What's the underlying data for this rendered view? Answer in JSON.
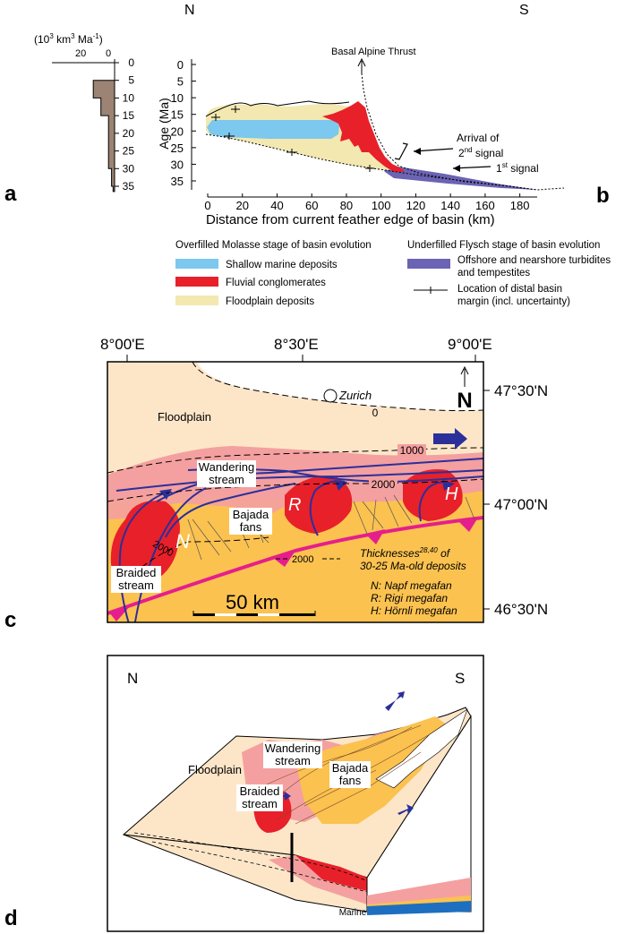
{
  "panel_letters": {
    "a": "a",
    "b": "b",
    "c": "c",
    "d": "d"
  },
  "panel_a": {
    "unit_base": "(10",
    "unit_exp1": "3",
    "unit_mid": " km",
    "unit_exp2": "3",
    "unit_ma": " Ma",
    "unit_exp3": "-1",
    "unit_close": ")",
    "x_ticks": [
      "20",
      "0"
    ],
    "fill_color": "#9c8373"
  },
  "panel_b": {
    "north": "N",
    "south": "S",
    "ylabel": "Age (Ma)",
    "xlabel": "Distance from current feather edge of basin (km)",
    "thrust_label": "Basal Alpine Thrust",
    "arrival_line1": "Arrival of",
    "arrival_line2_num": "2",
    "arrival_line2_sup": "nd",
    "arrival_line2_rest": " signal",
    "first_num": "1",
    "first_sup": "st",
    "first_rest": " signal",
    "colors": {
      "marine": "#7cc8ee",
      "fluvial": "#e8202a",
      "floodplain": "#f2e8b0",
      "flysch": "#6b63b3"
    }
  },
  "chart_data": [
    {
      "type": "bar",
      "orientation": "horizontal",
      "y": [
        0,
        5,
        10,
        15,
        20,
        25,
        30,
        35
      ],
      "xlim": [
        0,
        30
      ],
      "ylim": [
        0,
        35
      ],
      "values": [
        0,
        14,
        9,
        4,
        4,
        4,
        2,
        1
      ]
    },
    {
      "type": "area",
      "x_ticks": [
        "0",
        "20",
        "40",
        "60",
        "80",
        "100",
        "120",
        "140",
        "160",
        "180"
      ],
      "y_ticks": [
        "0",
        "5",
        "10",
        "15",
        "20",
        "25",
        "30",
        "35"
      ],
      "xlim": [
        0,
        190
      ],
      "ylim": [
        0,
        36
      ]
    }
  ],
  "legend": {
    "overfilled_title": "Overfilled Molasse stage of basin evolution",
    "underfilled_title": "Underfilled Flysch stage of basin evolution",
    "marine": "Shallow marine deposits",
    "fluvial": "Fluvial conglomerates",
    "floodplain": "Floodplain deposits",
    "flysch_line1": "Offshore and nearshore turbidites",
    "flysch_line2": "and tempestites",
    "margin_line1": "Location of distal basin",
    "margin_line2": "margin (incl. uncertainty)"
  },
  "panel_c": {
    "lon_labels": [
      "8°00'E",
      "8°30'E",
      "9°00'E"
    ],
    "lat_labels": [
      "47°30'N",
      "47°00'N",
      "46°30'N"
    ],
    "north_arrow": "N",
    "city": "Zurich",
    "floodplain": "Floodplain",
    "wandering_line1": "Wandering",
    "wandering_line2": "stream",
    "bajada_line1": "Bajada",
    "bajada_line2": "fans",
    "braided_line1": "Braided",
    "braided_line2": "stream",
    "fan_n": "N",
    "fan_r": "R",
    "fan_h": "H",
    "contour_0": "0",
    "contour_1000": "1000",
    "contour_2000a": "2000",
    "contour_2000b": "2000",
    "contour_2000c": "2000",
    "thick_line1_pre": "Thicknesses",
    "thick_line1_sup": "28,40",
    "thick_line1_post": " of",
    "thick_line2": "30-25 Ma-old deposits",
    "key_n": "N: Napf megafan",
    "key_r": "R: Rigi megafan",
    "key_h": "H: Hörnli megafan",
    "scale": "50 km",
    "colors": {
      "floodplain": "#fde6c8",
      "pink": "#f4a0a0",
      "orange": "#fbc250",
      "red": "#e8202a",
      "stream": "#2b2f9a",
      "thrust": "#e61e8c"
    }
  },
  "panel_d": {
    "north": "N",
    "south": "S",
    "floodplain": "Floodplain",
    "wandering_line1": "Wandering",
    "wandering_line2": "stream",
    "bajada_line1": "Bajada",
    "bajada_line2": "fans",
    "braided_line1": "Braided",
    "braided_line2": "stream",
    "marine": "Marine"
  }
}
